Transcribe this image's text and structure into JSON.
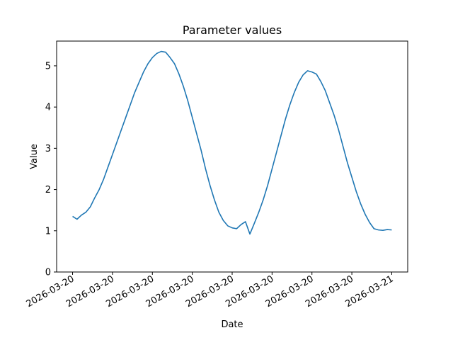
{
  "chart_data": {
    "type": "line",
    "title": "Parameter values",
    "xlabel": "Date",
    "ylabel": "Value",
    "ylim": [
      0,
      5.6
    ],
    "yticks": [
      0,
      1,
      2,
      3,
      4,
      5
    ],
    "xticks": [
      "2026-03-20",
      "2026-03-20",
      "2026-03-20",
      "2026-03-20",
      "2026-03-20",
      "2026-03-20",
      "2026-03-20",
      "2026-03-20",
      "2026-03-21"
    ],
    "grid": false,
    "colors": {
      "series": "#1f77b4"
    },
    "series": [
      {
        "x": [
          "2026-03-20T00:00",
          "2026-03-20T00:20",
          "2026-03-20T00:40",
          "2026-03-20T01:00",
          "2026-03-20T01:20",
          "2026-03-20T01:40",
          "2026-03-20T02:00",
          "2026-03-20T02:20",
          "2026-03-20T02:40",
          "2026-03-20T03:00",
          "2026-03-20T03:20",
          "2026-03-20T03:40",
          "2026-03-20T04:00",
          "2026-03-20T04:20",
          "2026-03-20T04:40",
          "2026-03-20T05:00",
          "2026-03-20T05:20",
          "2026-03-20T05:40",
          "2026-03-20T06:00",
          "2026-03-20T06:20",
          "2026-03-20T06:40",
          "2026-03-20T07:00",
          "2026-03-20T07:20",
          "2026-03-20T07:40",
          "2026-03-20T08:00",
          "2026-03-20T08:20",
          "2026-03-20T08:40",
          "2026-03-20T09:00",
          "2026-03-20T09:20",
          "2026-03-20T09:40",
          "2026-03-20T10:00",
          "2026-03-20T10:20",
          "2026-03-20T10:40",
          "2026-03-20T11:00",
          "2026-03-20T11:20",
          "2026-03-20T11:40",
          "2026-03-20T12:00",
          "2026-03-20T12:20",
          "2026-03-20T12:40",
          "2026-03-20T13:00",
          "2026-03-20T13:20",
          "2026-03-20T13:40",
          "2026-03-20T14:00",
          "2026-03-20T14:20",
          "2026-03-20T14:40",
          "2026-03-20T15:00",
          "2026-03-20T15:20",
          "2026-03-20T15:40",
          "2026-03-20T16:00",
          "2026-03-20T16:20",
          "2026-03-20T16:40",
          "2026-03-20T17:00",
          "2026-03-20T17:20",
          "2026-03-20T17:40",
          "2026-03-20T18:00",
          "2026-03-20T18:20",
          "2026-03-20T18:40",
          "2026-03-20T19:00",
          "2026-03-20T19:20",
          "2026-03-20T19:40",
          "2026-03-20T20:00",
          "2026-03-20T20:20",
          "2026-03-20T20:40",
          "2026-03-20T21:00",
          "2026-03-20T21:20",
          "2026-03-20T21:40",
          "2026-03-20T22:00",
          "2026-03-20T22:20",
          "2026-03-20T22:40",
          "2026-03-20T23:00",
          "2026-03-20T23:20",
          "2026-03-20T23:40",
          "2026-03-21T00:00"
        ],
        "values": [
          1.35,
          1.28,
          1.38,
          1.45,
          1.58,
          1.8,
          2.0,
          2.25,
          2.55,
          2.85,
          3.15,
          3.45,
          3.75,
          4.05,
          4.35,
          4.6,
          4.85,
          5.05,
          5.2,
          5.3,
          5.35,
          5.33,
          5.2,
          5.05,
          4.8,
          4.5,
          4.15,
          3.75,
          3.35,
          2.95,
          2.5,
          2.1,
          1.75,
          1.45,
          1.25,
          1.12,
          1.07,
          1.05,
          1.15,
          1.22,
          0.92,
          1.18,
          1.45,
          1.75,
          2.1,
          2.5,
          2.9,
          3.3,
          3.7,
          4.05,
          4.35,
          4.6,
          4.78,
          4.88,
          4.85,
          4.8,
          4.62,
          4.4,
          4.1,
          3.8,
          3.45,
          3.05,
          2.65,
          2.3,
          1.95,
          1.65,
          1.4,
          1.2,
          1.05,
          1.02,
          1.01,
          1.03,
          1.02
        ]
      }
    ]
  }
}
